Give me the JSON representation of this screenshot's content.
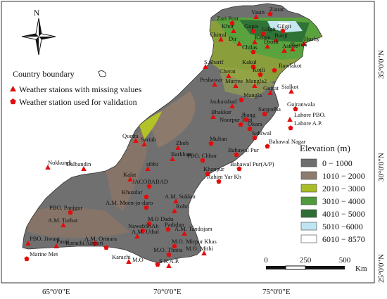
{
  "north_label": "N",
  "legend": {
    "boundary": "Country boundary",
    "missing": "Weather staions with missing values",
    "validation": "Weather station used for validation"
  },
  "elevation": {
    "title": "Elevation (m)",
    "classes": [
      {
        "label": "0  −  1000",
        "color": "#6e6e6e"
      },
      {
        "label": "1010 − 2000",
        "color": "#8c7b6f"
      },
      {
        "label": "2010 − 3000",
        "color": "#a9bd27"
      },
      {
        "label": "3010 − 4000",
        "color": "#4f9a3d"
      },
      {
        "label": "4010 − 5000",
        "color": "#2e6e34"
      },
      {
        "label": "5010  −6000",
        "color": "#bfe4f2"
      },
      {
        "label": "6010 − 8570",
        "color": "#ffffff"
      }
    ]
  },
  "scale": {
    "ticks": [
      "0",
      "250",
      "500"
    ],
    "unit": "Km"
  },
  "lon_labels": [
    "65°0'0\"E",
    "70°0'0\"E",
    "75°0'0\"E"
  ],
  "lat_labels": [
    "35°0'0\"N",
    "30°0'0\"N",
    "25°0'0\"N"
  ],
  "stations": [
    {
      "name": "Ziarat"
    },
    {
      "name": "Zari Post"
    },
    {
      "name": "Yasin"
    },
    {
      "name": "Khor"
    },
    {
      "name": "Chitral"
    },
    {
      "name": "Gupis"
    },
    {
      "name": "Gilgit"
    },
    {
      "name": "Gilgit"
    },
    {
      "name": "Bunji"
    },
    {
      "name": "Astore"
    },
    {
      "name": "Hushy"
    },
    {
      "name": "Skardu"
    },
    {
      "name": "Dir"
    },
    {
      "name": "Kalam"
    },
    {
      "name": "Drosh"
    },
    {
      "name": "S.Sharif"
    },
    {
      "name": "Chilas"
    },
    {
      "name": "Cherat"
    },
    {
      "name": "Peshawar"
    },
    {
      "name": "Kakul"
    },
    {
      "name": "Rawlakot"
    },
    {
      "name": "Kotli"
    },
    {
      "name": "Murree"
    },
    {
      "name": "Mangla2"
    },
    {
      "name": "Gujrat"
    },
    {
      "name": "Sialkot"
    },
    {
      "name": "Mangla"
    },
    {
      "name": "Jauharabad"
    },
    {
      "name": "Gujranwala"
    },
    {
      "name": "Bhakkar"
    },
    {
      "name": "Sargodha"
    },
    {
      "name": "Lahore PBO."
    },
    {
      "name": "Lahore A.P."
    },
    {
      "name": "Noorpur Thal"
    },
    {
      "name": "Jhang"
    },
    {
      "name": "Okara"
    },
    {
      "name": "Sahiwal"
    },
    {
      "name": "Bahawal Nagar"
    },
    {
      "name": "Quetta"
    },
    {
      "name": "Sariab"
    },
    {
      "name": "Zhob"
    },
    {
      "name": "Multan"
    },
    {
      "name": "Barkhan"
    },
    {
      "name": "Bahawal Pur"
    },
    {
      "name": "sibbi"
    },
    {
      "name": "PBO. Chhor"
    },
    {
      "name": "Bahawal Pur(A/P)"
    },
    {
      "name": "Nokkundi"
    },
    {
      "name": "Dalbandin"
    },
    {
      "name": "Kalat"
    },
    {
      "name": "JACOBABAD"
    },
    {
      "name": "Khanpur"
    },
    {
      "name": "Rahim Yar Kh"
    },
    {
      "name": "Khuzdar"
    },
    {
      "name": "A.M. Sukkur"
    },
    {
      "name": "A.M. Moen-jo-daro"
    },
    {
      "name": "Rohri"
    },
    {
      "name": "PBO. Panjgur"
    },
    {
      "name": "M.O Dadu"
    },
    {
      "name": "NawabShAh"
    },
    {
      "name": "Padidan"
    },
    {
      "name": "A.M. Turbat"
    },
    {
      "name": "A.M. Uthal"
    },
    {
      "name": "A.M. Tandojam"
    },
    {
      "name": "A.M. Ormara"
    },
    {
      "name": "M.O. Mirpur Khas"
    },
    {
      "name": "PBO. Jiwani"
    },
    {
      "name": "Pasni"
    },
    {
      "name": "Karachi Airport"
    },
    {
      "name": "M.O. Thatta"
    },
    {
      "name": "M.O. Mithi"
    },
    {
      "name": "Marine Met"
    },
    {
      "name": "Karachi"
    },
    {
      "name": "M.O"
    },
    {
      "name": "S K A.P."
    }
  ]
}
